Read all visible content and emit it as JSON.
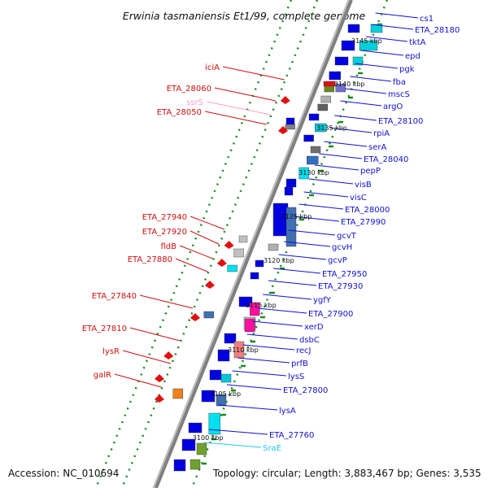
{
  "title": "Erwinia tasmaniensis Et1/99, complete genome",
  "footer": {
    "accession": "Accession: NC_010694",
    "topology": "Topology: circular; Length: 3,883,467 bp; Genes: 3,535"
  },
  "colors": {
    "label_blue": "#1010d0",
    "label_red": "#cc1010",
    "label_pink": "#f4a0c8",
    "label_cyan": "#20c8e0",
    "backbone": "#808080",
    "dots_green": "#1a8a1a"
  },
  "ticks": [
    "3145 kbp",
    "3140 kbp",
    "3135 kbp",
    "3130 kbp",
    "3125 kbp",
    "3120 kbp",
    "3115 kbp",
    "3110 kbp",
    "3105 kbp",
    "3100 kbp"
  ],
  "right_labels": [
    "cs1",
    "ETA_28180",
    "tktA",
    "epd",
    "pgk",
    "fba",
    "mscS",
    "argO",
    "ETA_28100",
    "rpiA",
    "serA",
    "ETA_28040",
    "pepP",
    "visB",
    "visC",
    "ETA_28000",
    "ETA_27990",
    "gcvT",
    "gcvH",
    "gcvP",
    "ETA_27950",
    "ETA_27930",
    "ygfY",
    "ETA_27900",
    "xerD",
    "dsbC",
    "recJ",
    "prfB",
    "lysS",
    "ETA_27800",
    "lysA",
    "ETA_27760",
    "SraE"
  ],
  "left_labels": [
    "iciA",
    "ETA_28060",
    "ssrS",
    "ETA_28050",
    "ETA_27940",
    "ETA_27920",
    "fldB",
    "ETA_27880",
    "ETA_27840",
    "ETA_27810",
    "lysR",
    "galR"
  ]
}
